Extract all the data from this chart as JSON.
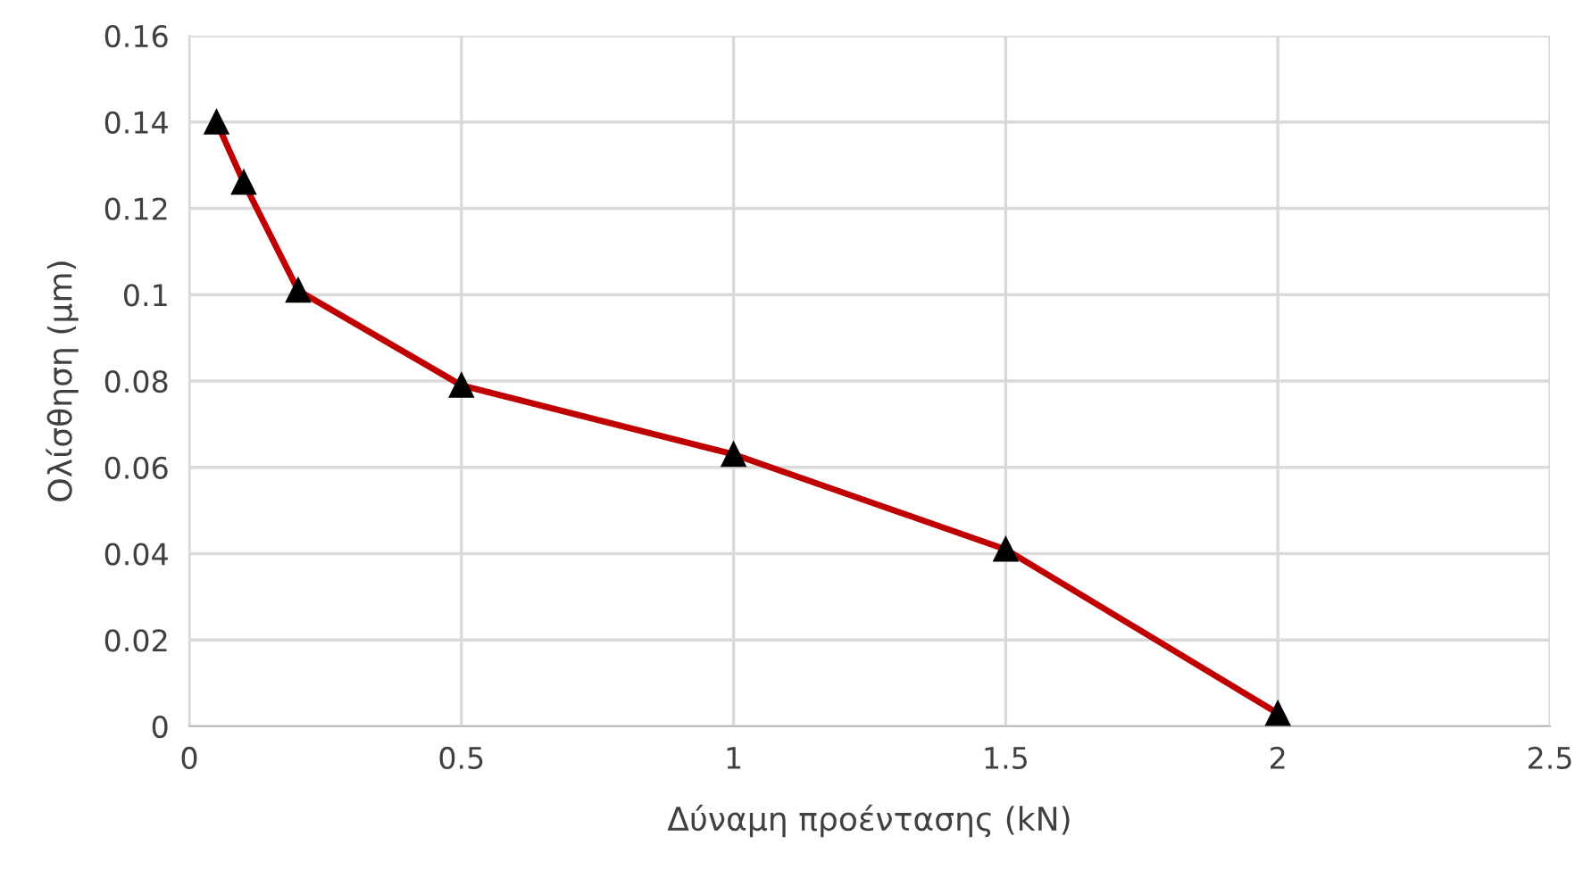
{
  "chart_data": {
    "type": "line",
    "xlabel": "Δύναμη προέντασης (kN)",
    "ylabel": "Ολίσθηση (μm)",
    "x": [
      0.05,
      0.1,
      0.2,
      0.5,
      1,
      1.5,
      2
    ],
    "series": [
      {
        "color": "#c00000",
        "values": [
          0.14,
          0.126,
          0.101,
          0.079,
          0.063,
          0.041,
          0.003
        ]
      }
    ],
    "xlim": [
      0,
      2.5
    ],
    "xticks": [
      0,
      0.5,
      1,
      1.5,
      2,
      2.5
    ],
    "ylim": [
      0,
      0.16
    ],
    "yticks": [
      0,
      0.02,
      0.04,
      0.06,
      0.08,
      0.1,
      0.12,
      0.14,
      0.16
    ],
    "grid": true,
    "marker": "triangle",
    "line_style": "solid"
  }
}
